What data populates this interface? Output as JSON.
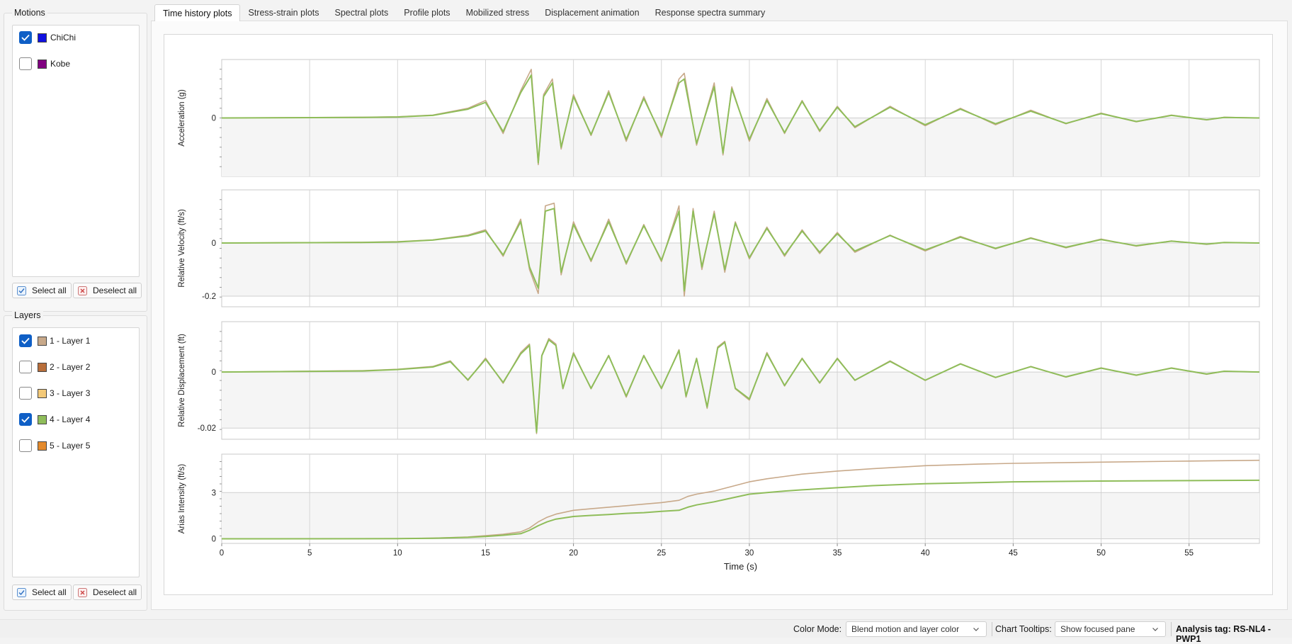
{
  "motions": {
    "title": "Motions",
    "items": [
      {
        "label": "ChiChi",
        "checked": true,
        "color": "#1010e0"
      },
      {
        "label": "Kobe",
        "checked": false,
        "color": "#800080"
      }
    ],
    "select_all": "Select all",
    "deselect_all": "Deselect all"
  },
  "layers": {
    "title": "Layers",
    "items": [
      {
        "label": "1 - Layer 1",
        "checked": true,
        "color": "#c8a98a"
      },
      {
        "label": "2 - Layer 2",
        "checked": false,
        "color": "#b86e3a"
      },
      {
        "label": "3 - Layer 3",
        "checked": false,
        "color": "#f3c978"
      },
      {
        "label": "4 - Layer 4",
        "checked": true,
        "color": "#8fbd5a"
      },
      {
        "label": "5 - Layer 5",
        "checked": false,
        "color": "#e48a2c"
      }
    ],
    "select_all": "Select all",
    "deselect_all": "Deselect all"
  },
  "tabs": [
    {
      "label": "Time history plots",
      "active": true
    },
    {
      "label": "Stress-strain plots",
      "active": false
    },
    {
      "label": "Spectral plots",
      "active": false
    },
    {
      "label": "Profile plots",
      "active": false
    },
    {
      "label": "Mobilized stress",
      "active": false
    },
    {
      "label": "Displacement animation",
      "active": false
    },
    {
      "label": "Response spectra summary",
      "active": false
    }
  ],
  "chart_data": {
    "type": "line",
    "xlabel": "Time (s)",
    "xlim": [
      0,
      59
    ],
    "xticks": [
      0,
      5,
      10,
      15,
      20,
      25,
      30,
      35,
      40,
      45,
      50,
      55
    ],
    "x_tick_labels": [
      "0",
      "5",
      "10",
      "15",
      "20",
      "25",
      "30",
      "35",
      "40",
      "45",
      "50",
      "55"
    ],
    "series_colors": {
      "layer1": "#c8a98a",
      "layer4": "#8fbd5a"
    },
    "panels": [
      {
        "ylabel": "Acceleration (g)",
        "ylim": [
          -0.3,
          0.3
        ],
        "yticks": [
          0
        ],
        "y_tick_labels": [
          "0"
        ],
        "series": [
          {
            "layer": "1 - Layer 1",
            "motion": "ChiChi",
            "color": "#c8a98a",
            "x": [
              0,
              8,
              10,
              12,
              14,
              15,
              16,
              17,
              17.6,
              18,
              18.3,
              18.8,
              19.3,
              20,
              21,
              22,
              23,
              24,
              25,
              26,
              26.3,
              27,
              28,
              28.5,
              29,
              30,
              31,
              32,
              33,
              34,
              35,
              36,
              38,
              40,
              42,
              44,
              46,
              48,
              50,
              52,
              54,
              56,
              57,
              59
            ],
            "y": [
              0,
              0.004,
              0.006,
              0.015,
              0.05,
              0.09,
              -0.08,
              0.14,
              0.25,
              -0.24,
              0.12,
              0.2,
              -0.16,
              0.12,
              -0.09,
              0.14,
              -0.12,
              0.11,
              -0.1,
              0.2,
              0.23,
              -0.14,
              0.18,
              -0.19,
              0.16,
              -0.12,
              0.1,
              -0.08,
              0.09,
              -0.07,
              0.06,
              -0.05,
              0.06,
              -0.04,
              0.05,
              -0.035,
              0.04,
              -0.03,
              0.025,
              -0.02,
              0.015,
              -0.01,
              0.004,
              0
            ]
          },
          {
            "layer": "4 - Layer 4",
            "motion": "ChiChi",
            "color": "#8fbd5a",
            "x": [
              0,
              8,
              10,
              12,
              14,
              15,
              16,
              17,
              17.6,
              18,
              18.3,
              18.8,
              19.3,
              20,
              21,
              22,
              23,
              24,
              25,
              26,
              26.3,
              27,
              28,
              28.5,
              29,
              30,
              31,
              32,
              33,
              34,
              35,
              36,
              38,
              40,
              42,
              44,
              46,
              48,
              50,
              52,
              54,
              56,
              57,
              59
            ],
            "y": [
              0,
              0.003,
              0.005,
              0.013,
              0.045,
              0.08,
              -0.07,
              0.13,
              0.22,
              -0.23,
              0.11,
              0.18,
              -0.15,
              0.11,
              -0.085,
              0.13,
              -0.11,
              0.1,
              -0.09,
              0.18,
              0.2,
              -0.13,
              0.16,
              -0.18,
              0.15,
              -0.11,
              0.09,
              -0.075,
              0.085,
              -0.065,
              0.055,
              -0.045,
              0.055,
              -0.035,
              0.045,
              -0.03,
              0.035,
              -0.028,
              0.022,
              -0.018,
              0.013,
              -0.009,
              0.003,
              0
            ]
          }
        ]
      },
      {
        "ylabel": "Relative Velocity (ft/s)",
        "ylim": [
          -0.24,
          0.2
        ],
        "yticks": [
          0,
          -0.2
        ],
        "y_tick_labels": [
          "0",
          "-0.2"
        ],
        "series": [
          {
            "layer": "1 - Layer 1",
            "motion": "ChiChi",
            "color": "#c8a98a",
            "x": [
              0,
              8,
              10,
              12,
              14,
              15,
              16,
              17,
              17.5,
              18,
              18.4,
              18.9,
              19.3,
              20,
              21,
              22,
              23,
              24,
              25,
              26,
              26.3,
              26.8,
              27.3,
              28,
              28.6,
              29.2,
              30,
              31,
              32,
              33,
              34,
              35,
              36,
              38,
              40,
              42,
              44,
              46,
              48,
              50,
              52,
              54,
              56,
              57,
              59
            ],
            "y": [
              0,
              0.003,
              0.005,
              0.012,
              0.03,
              0.05,
              -0.05,
              0.09,
              -0.1,
              -0.19,
              0.14,
              0.15,
              -0.12,
              0.08,
              -0.07,
              0.09,
              -0.08,
              0.07,
              -0.07,
              0.14,
              -0.2,
              0.13,
              -0.1,
              0.12,
              -0.11,
              0.08,
              -0.06,
              0.06,
              -0.05,
              0.05,
              -0.04,
              0.04,
              -0.035,
              0.03,
              -0.03,
              0.025,
              -0.022,
              0.02,
              -0.018,
              0.015,
              -0.012,
              0.008,
              -0.005,
              0.002,
              0
            ]
          },
          {
            "layer": "4 - Layer 4",
            "motion": "ChiChi",
            "color": "#8fbd5a",
            "x": [
              0,
              8,
              10,
              12,
              14,
              15,
              16,
              17,
              17.5,
              18,
              18.4,
              18.9,
              19.3,
              20,
              21,
              22,
              23,
              24,
              25,
              26,
              26.3,
              26.8,
              27.3,
              28,
              28.6,
              29.2,
              30,
              31,
              32,
              33,
              34,
              35,
              36,
              38,
              40,
              42,
              44,
              46,
              48,
              50,
              52,
              54,
              56,
              57,
              59
            ],
            "y": [
              0,
              0.002,
              0.004,
              0.011,
              0.027,
              0.045,
              -0.045,
              0.08,
              -0.09,
              -0.17,
              0.12,
              0.13,
              -0.11,
              0.07,
              -0.065,
              0.08,
              -0.075,
              0.065,
              -0.065,
              0.12,
              -0.18,
              0.12,
              -0.09,
              0.11,
              -0.1,
              0.075,
              -0.055,
              0.055,
              -0.045,
              0.045,
              -0.035,
              0.035,
              -0.03,
              0.028,
              -0.026,
              0.022,
              -0.02,
              0.018,
              -0.016,
              0.013,
              -0.01,
              0.007,
              -0.004,
              0.002,
              0
            ]
          }
        ]
      },
      {
        "ylabel": "Relative Displacement (ft)",
        "ylim": [
          -0.024,
          0.018
        ],
        "yticks": [
          0,
          -0.02
        ],
        "y_tick_labels": [
          "0",
          "-0.02"
        ],
        "series": [
          {
            "layer": "1 - Layer 1",
            "motion": "ChiChi",
            "color": "#c8a98a",
            "x": [
              0,
              8,
              10,
              12,
              13,
              14,
              15,
              16,
              17,
              17.5,
              17.9,
              18.2,
              18.6,
              19,
              19.4,
              20,
              21,
              22,
              23,
              24,
              25,
              26,
              26.4,
              27,
              27.6,
              28.2,
              28.6,
              29.2,
              30,
              31,
              32,
              33,
              34,
              35,
              36,
              38,
              40,
              42,
              44,
              46,
              48,
              50,
              52,
              54,
              56,
              57,
              59
            ],
            "y": [
              0,
              0.0005,
              0.001,
              0.002,
              0.004,
              -0.003,
              0.005,
              -0.004,
              0.007,
              0.01,
              -0.022,
              0.006,
              0.012,
              0.01,
              -0.006,
              0.007,
              -0.006,
              0.006,
              -0.009,
              0.006,
              -0.006,
              0.008,
              -0.009,
              0.005,
              -0.013,
              0.009,
              0.011,
              -0.006,
              -0.01,
              0.007,
              -0.005,
              0.005,
              -0.004,
              0.005,
              -0.003,
              0.004,
              -0.003,
              0.003,
              -0.002,
              0.002,
              -0.0018,
              0.0015,
              -0.0012,
              0.0015,
              -0.0008,
              0.0003,
              0
            ]
          },
          {
            "layer": "4 - Layer 4",
            "motion": "ChiChi",
            "color": "#8fbd5a",
            "x": [
              0,
              8,
              10,
              12,
              13,
              14,
              15,
              16,
              17,
              17.5,
              17.9,
              18.2,
              18.6,
              19,
              19.4,
              20,
              21,
              22,
              23,
              24,
              25,
              26,
              26.4,
              27,
              27.6,
              28.2,
              28.6,
              29.2,
              30,
              31,
              32,
              33,
              34,
              35,
              36,
              38,
              40,
              42,
              44,
              46,
              48,
              50,
              52,
              54,
              56,
              57,
              59
            ],
            "y": [
              0,
              0.0004,
              0.0009,
              0.0018,
              0.0037,
              -0.0028,
              0.0046,
              -0.0037,
              0.0065,
              0.0095,
              -0.0215,
              0.0058,
              0.0115,
              0.0095,
              -0.0058,
              0.0066,
              -0.0058,
              0.0058,
              -0.0086,
              0.0058,
              -0.0058,
              0.0077,
              -0.0086,
              0.0048,
              -0.0125,
              0.0086,
              0.0106,
              -0.0058,
              -0.0096,
              0.0066,
              -0.0048,
              0.0048,
              -0.0038,
              0.0048,
              -0.0029,
              0.0038,
              -0.0029,
              0.0029,
              -0.0019,
              0.0019,
              -0.0017,
              0.0014,
              -0.0011,
              0.0014,
              -0.0007,
              0.0003,
              0
            ]
          }
        ]
      },
      {
        "ylabel": "Arias Intensity (ft/s)",
        "ylim": [
          -0.3,
          5.5
        ],
        "yticks": [
          0,
          3
        ],
        "y_tick_labels": [
          "0",
          "3"
        ],
        "series": [
          {
            "layer": "1 - Layer 1",
            "motion": "ChiChi",
            "color": "#c8a98a",
            "x": [
              0,
              10,
              12,
              14,
              15,
              16,
              17,
              17.5,
              18,
              18.5,
              19,
              20,
              21,
              22,
              23,
              24,
              25,
              26,
              26.5,
              27,
              28,
              29,
              30,
              31,
              32,
              33,
              34,
              35,
              37,
              40,
              43,
              45,
              50,
              55,
              59
            ],
            "y": [
              0,
              0.01,
              0.04,
              0.12,
              0.2,
              0.3,
              0.45,
              0.7,
              1.1,
              1.4,
              1.6,
              1.85,
              1.95,
              2.05,
              2.15,
              2.25,
              2.35,
              2.5,
              2.75,
              2.9,
              3.1,
              3.4,
              3.7,
              3.9,
              4.05,
              4.2,
              4.3,
              4.4,
              4.55,
              4.75,
              4.85,
              4.9,
              4.98,
              5.05,
              5.1
            ]
          },
          {
            "layer": "4 - Layer 4",
            "motion": "ChiChi",
            "color": "#8fbd5a",
            "x": [
              0,
              10,
              12,
              14,
              15,
              16,
              17,
              17.5,
              18,
              18.5,
              19,
              20,
              21,
              22,
              23,
              24,
              25,
              26,
              26.5,
              27,
              28,
              29,
              30,
              31,
              32,
              33,
              34,
              35,
              37,
              40,
              43,
              45,
              50,
              55,
              59
            ],
            "y": [
              0,
              0.008,
              0.03,
              0.09,
              0.15,
              0.23,
              0.33,
              0.55,
              0.85,
              1.1,
              1.28,
              1.45,
              1.52,
              1.58,
              1.65,
              1.7,
              1.78,
              1.85,
              2.05,
              2.2,
              2.4,
              2.65,
              2.9,
              3.0,
              3.1,
              3.18,
              3.25,
              3.32,
              3.45,
              3.58,
              3.65,
              3.7,
              3.75,
              3.78,
              3.8
            ]
          }
        ]
      }
    ]
  },
  "status": {
    "color_mode_label": "Color Mode:",
    "color_mode_value": "Blend motion and layer color",
    "chart_tooltips_label": "Chart Tooltips:",
    "chart_tooltips_value": "Show focused pane",
    "analysis_tag": "Analysis tag: RS-NL4 -PWP1"
  }
}
